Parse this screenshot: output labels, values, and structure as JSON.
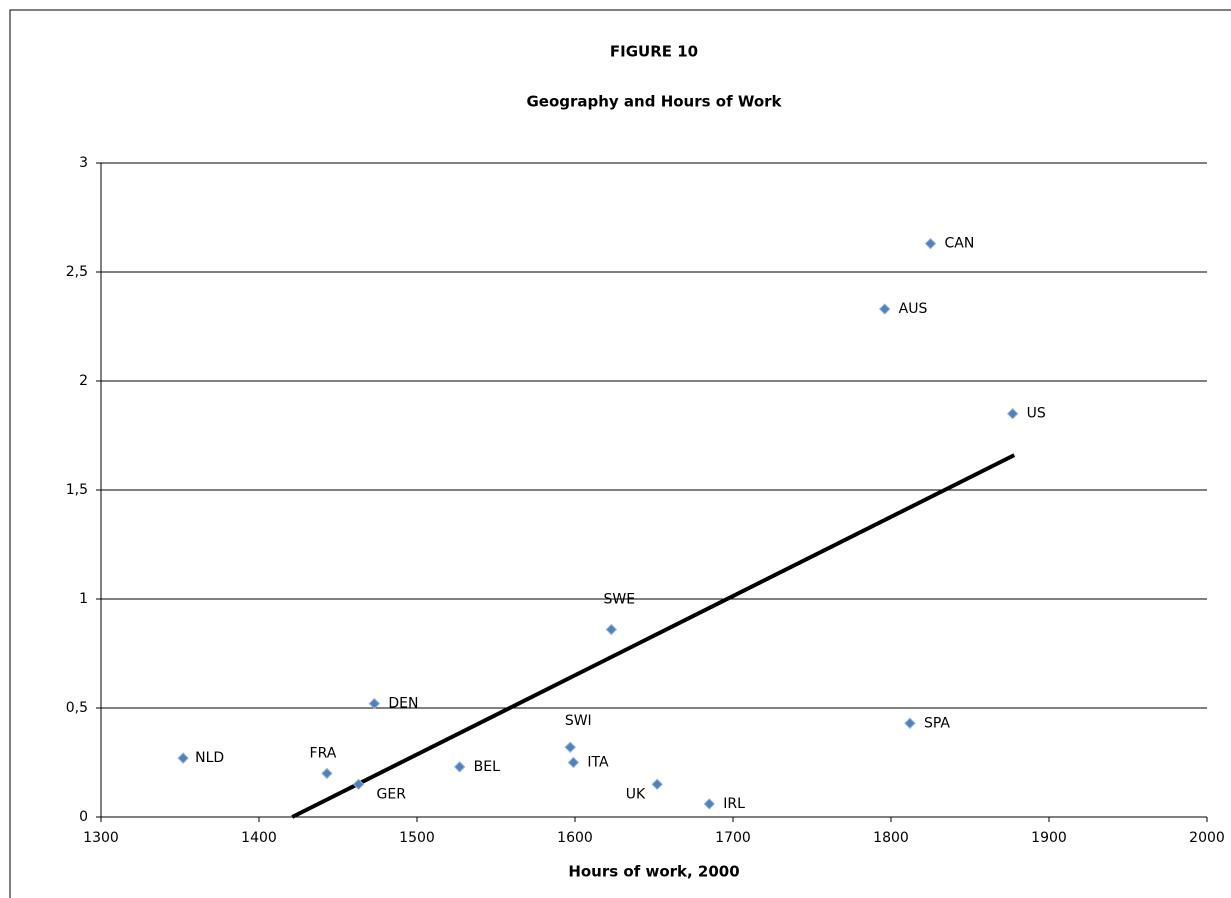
{
  "chart_data": {
    "type": "scatter",
    "title": "FIGURE 10",
    "subtitle": "Geography and Hours of Work",
    "x_label": "Hours of work, 2000",
    "x": [
      1352,
      1443,
      1463,
      1473,
      1527,
      1623,
      1597,
      1599,
      1652,
      1685,
      1812,
      1796,
      1825,
      1877
    ],
    "values": [
      0.27,
      0.2,
      0.15,
      0.52,
      0.23,
      0.86,
      0.32,
      0.25,
      0.15,
      0.06,
      0.43,
      2.33,
      2.63,
      1.85
    ],
    "labels": [
      "NLD",
      "FRA",
      "GER",
      "DEN",
      "BEL",
      "SWE",
      "SWI",
      "ITA",
      "UK",
      "IRL",
      "SPA",
      "AUS",
      "CAN",
      "US"
    ],
    "color": "#4f81bd",
    "trendline": {
      "x": [
        1421,
        1878
      ],
      "values": [
        0,
        1.66
      ],
      "color": "#000000"
    },
    "xlim": [
      1300,
      2000
    ],
    "xticks": [
      1300,
      1400,
      1500,
      1600,
      1700,
      1800,
      1900,
      2000
    ],
    "ylim": [
      0,
      3
    ],
    "yticks": [
      0,
      {
        "value": 0.5,
        "label": "0,5"
      },
      1,
      {
        "value": 1.5,
        "label": "1,5"
      },
      2,
      {
        "value": 2.5,
        "label": "2,5"
      },
      3
    ],
    "grid": true
  }
}
